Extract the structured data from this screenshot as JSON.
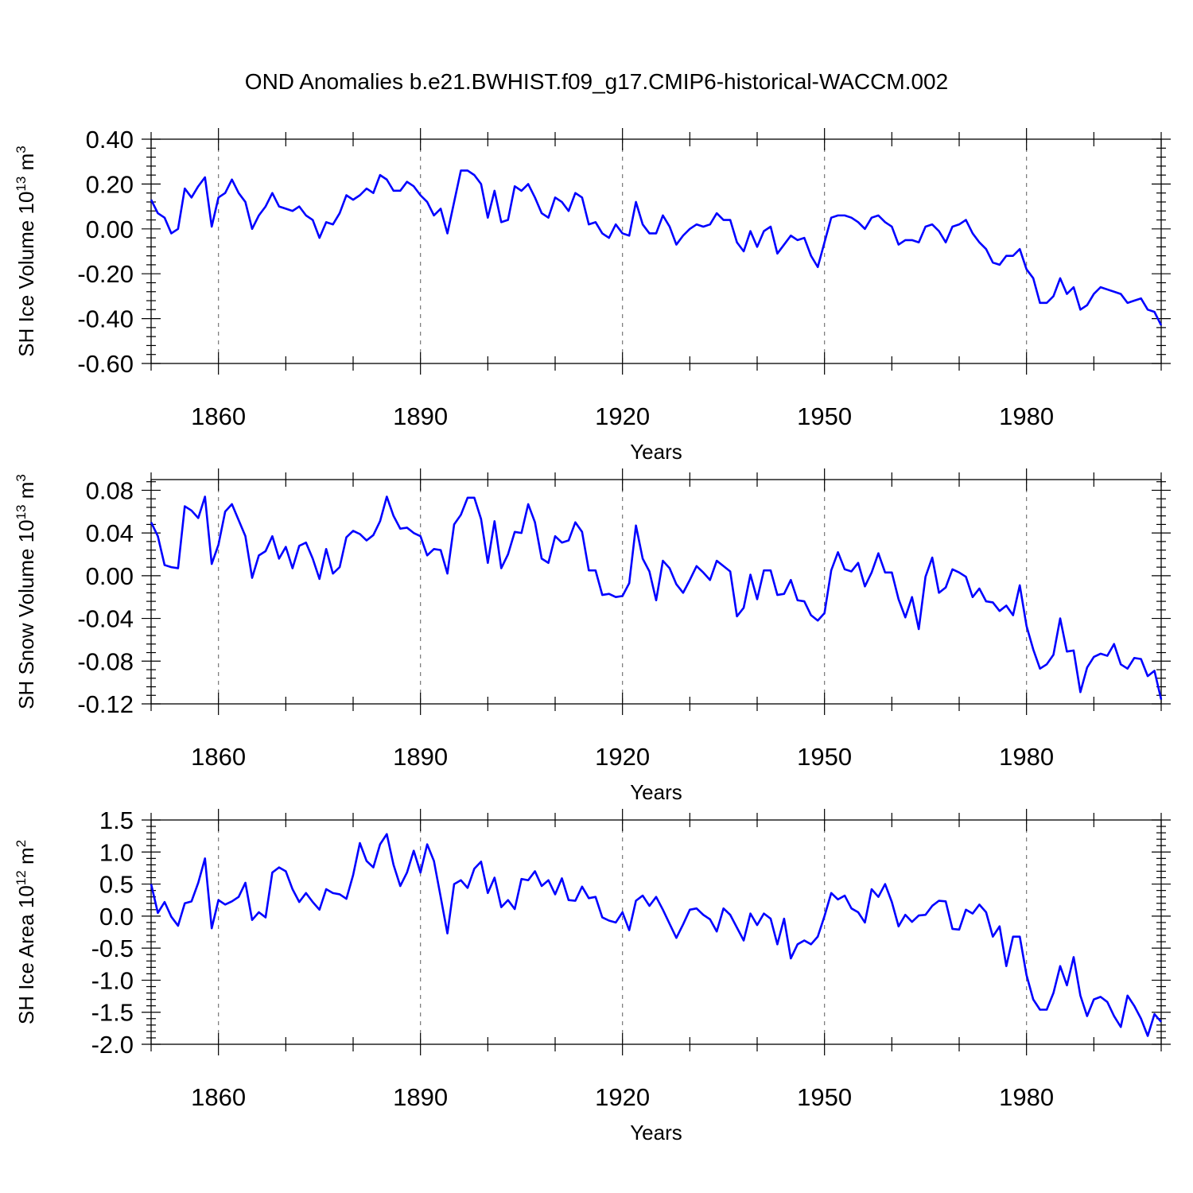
{
  "figure_title": "OND Anomalies b.e21.BWHIST.f09_g17.CMIP6-historical-WACCM.002",
  "colors": {
    "series": "#0000ff",
    "grid": "#777777",
    "axes": "#000000"
  },
  "chart_data": [
    {
      "type": "line",
      "xlabel": "Years",
      "ylabel": "SH Ice Volume 10",
      "ylabel_exp": "13",
      "ylabel_unit": " m",
      "ylabel_unit_exp": "3",
      "xlim": [
        1850,
        2000
      ],
      "ylim": [
        -0.6,
        0.4
      ],
      "yticks": [
        -0.6,
        -0.4,
        -0.2,
        0.0,
        0.2,
        0.4
      ],
      "ytick_labels": [
        "-0.60",
        "-0.40",
        "-0.20",
        "0.00",
        "0.20",
        "0.40"
      ],
      "xticks": [
        1860,
        1890,
        1920,
        1950,
        1980
      ],
      "xtick_labels": [
        "1860",
        "1890",
        "1920",
        "1950",
        "1980"
      ],
      "grid": "vertical dashed at x ticks",
      "x_start": 1850,
      "series": [
        {
          "color": "#0000ff",
          "values": [
            0.13,
            0.07,
            0.05,
            -0.02,
            0.0,
            0.18,
            0.14,
            0.19,
            0.23,
            0.01,
            0.14,
            0.16,
            0.22,
            0.16,
            0.12,
            0.0,
            0.06,
            0.1,
            0.16,
            0.1,
            0.09,
            0.08,
            0.1,
            0.06,
            0.04,
            -0.04,
            0.03,
            0.02,
            0.07,
            0.15,
            0.13,
            0.15,
            0.18,
            0.16,
            0.24,
            0.22,
            0.17,
            0.17,
            0.21,
            0.19,
            0.15,
            0.12,
            0.06,
            0.09,
            -0.02,
            0.12,
            0.26,
            0.26,
            0.24,
            0.2,
            0.05,
            0.17,
            0.03,
            0.04,
            0.19,
            0.17,
            0.2,
            0.14,
            0.07,
            0.05,
            0.14,
            0.12,
            0.08,
            0.16,
            0.14,
            0.02,
            0.03,
            -0.02,
            -0.04,
            0.02,
            -0.02,
            -0.03,
            0.12,
            0.02,
            -0.02,
            -0.02,
            0.06,
            0.01,
            -0.07,
            -0.03,
            0.0,
            0.02,
            0.01,
            0.02,
            0.07,
            0.04,
            0.04,
            -0.06,
            -0.1,
            -0.01,
            -0.08,
            -0.01,
            0.01,
            -0.11,
            -0.07,
            -0.03,
            -0.05,
            -0.04,
            -0.12,
            -0.17,
            -0.06,
            0.05,
            0.06,
            0.06,
            0.05,
            0.03,
            0.0,
            0.05,
            0.06,
            0.03,
            0.01,
            -0.07,
            -0.05,
            -0.05,
            -0.06,
            0.01,
            0.02,
            -0.01,
            -0.06,
            0.01,
            0.02,
            0.04,
            -0.02,
            -0.06,
            -0.09,
            -0.15,
            -0.16,
            -0.12,
            -0.12,
            -0.09,
            -0.18,
            -0.22,
            -0.33,
            -0.33,
            -0.3,
            -0.22,
            -0.29,
            -0.26,
            -0.36,
            -0.34,
            -0.29,
            -0.26,
            -0.27,
            -0.28,
            -0.29,
            -0.33,
            -0.32,
            -0.31,
            -0.36,
            -0.37,
            -0.43
          ]
        }
      ]
    },
    {
      "type": "line",
      "xlabel": "Years",
      "ylabel": "SH Snow Volume 10",
      "ylabel_exp": "13",
      "ylabel_unit": " m",
      "ylabel_unit_exp": "3",
      "xlim": [
        1850,
        2000
      ],
      "ylim": [
        -0.12,
        0.09
      ],
      "yticks": [
        -0.12,
        -0.08,
        -0.04,
        0.0,
        0.04,
        0.08
      ],
      "ytick_labels": [
        "-0.12",
        "-0.08",
        "-0.04",
        "0.00",
        "0.04",
        "0.08"
      ],
      "xticks": [
        1860,
        1890,
        1920,
        1950,
        1980
      ],
      "xtick_labels": [
        "1860",
        "1890",
        "1920",
        "1950",
        "1980"
      ],
      "grid": "vertical dashed at x ticks",
      "x_start": 1850,
      "series": [
        {
          "color": "#0000ff",
          "values": [
            0.05,
            0.037,
            0.01,
            0.008,
            0.007,
            0.065,
            0.061,
            0.054,
            0.074,
            0.011,
            0.029,
            0.06,
            0.067,
            0.052,
            0.037,
            -0.002,
            0.019,
            0.023,
            0.037,
            0.016,
            0.027,
            0.007,
            0.028,
            0.031,
            0.016,
            -0.003,
            0.025,
            0.002,
            0.008,
            0.036,
            0.042,
            0.039,
            0.033,
            0.038,
            0.051,
            0.074,
            0.056,
            0.044,
            0.045,
            0.04,
            0.037,
            0.019,
            0.025,
            0.024,
            0.002,
            0.048,
            0.057,
            0.073,
            0.073,
            0.053,
            0.012,
            0.051,
            0.007,
            0.02,
            0.041,
            0.04,
            0.067,
            0.05,
            0.016,
            0.012,
            0.037,
            0.031,
            0.033,
            0.05,
            0.041,
            0.005,
            0.005,
            -0.018,
            -0.017,
            -0.02,
            -0.019,
            -0.007,
            0.047,
            0.016,
            0.004,
            -0.023,
            0.014,
            0.007,
            -0.008,
            -0.016,
            -0.004,
            0.009,
            0.003,
            -0.004,
            0.014,
            0.009,
            0.004,
            -0.038,
            -0.03,
            0.001,
            -0.022,
            0.005,
            0.005,
            -0.018,
            -0.017,
            -0.004,
            -0.023,
            -0.024,
            -0.037,
            -0.042,
            -0.035,
            0.005,
            0.022,
            0.006,
            0.004,
            0.012,
            -0.01,
            0.003,
            0.021,
            0.003,
            0.003,
            -0.022,
            -0.039,
            -0.02,
            -0.05,
            -0.001,
            0.017,
            -0.016,
            -0.011,
            0.006,
            0.003,
            -0.001,
            -0.02,
            -0.012,
            -0.024,
            -0.025,
            -0.033,
            -0.028,
            -0.037,
            -0.009,
            -0.047,
            -0.069,
            -0.087,
            -0.083,
            -0.074,
            -0.04,
            -0.071,
            -0.07,
            -0.109,
            -0.086,
            -0.076,
            -0.073,
            -0.075,
            -0.064,
            -0.083,
            -0.087,
            -0.077,
            -0.078,
            -0.094,
            -0.089,
            -0.116
          ]
        }
      ]
    },
    {
      "type": "line",
      "xlabel": "Years",
      "ylabel": "SH Ice Area 10",
      "ylabel_exp": "12",
      "ylabel_unit": " m",
      "ylabel_unit_exp": "2",
      "xlim": [
        1850,
        2000
      ],
      "ylim": [
        -2.0,
        1.5
      ],
      "yticks": [
        -2.0,
        -1.5,
        -1.0,
        -0.5,
        0.0,
        0.5,
        1.0,
        1.5
      ],
      "ytick_labels": [
        "-2.0",
        "-1.5",
        "-1.0",
        "-0.5",
        "0.0",
        "0.5",
        "1.0",
        "1.5"
      ],
      "xticks": [
        1860,
        1890,
        1920,
        1950,
        1980
      ],
      "xtick_labels": [
        "1860",
        "1890",
        "1920",
        "1950",
        "1980"
      ],
      "grid": "vertical dashed at x ticks",
      "x_start": 1850,
      "series": [
        {
          "color": "#0000ff",
          "values": [
            0.5,
            0.05,
            0.22,
            -0.01,
            -0.15,
            0.2,
            0.23,
            0.52,
            0.9,
            -0.19,
            0.25,
            0.18,
            0.23,
            0.3,
            0.52,
            -0.06,
            0.06,
            -0.02,
            0.68,
            0.76,
            0.7,
            0.42,
            0.22,
            0.36,
            0.22,
            0.1,
            0.42,
            0.36,
            0.34,
            0.27,
            0.64,
            1.14,
            0.86,
            0.76,
            1.12,
            1.28,
            0.8,
            0.47,
            0.68,
            1.02,
            0.68,
            1.12,
            0.86,
            0.3,
            -0.27,
            0.5,
            0.56,
            0.44,
            0.74,
            0.85,
            0.36,
            0.6,
            0.14,
            0.25,
            0.11,
            0.58,
            0.56,
            0.7,
            0.47,
            0.56,
            0.34,
            0.59,
            0.25,
            0.24,
            0.46,
            0.28,
            0.3,
            -0.02,
            -0.07,
            -0.1,
            0.06,
            -0.22,
            0.24,
            0.32,
            0.16,
            0.3,
            0.1,
            -0.12,
            -0.34,
            -0.13,
            0.1,
            0.12,
            0.02,
            -0.05,
            -0.24,
            0.12,
            0.02,
            -0.18,
            -0.38,
            0.04,
            -0.14,
            0.04,
            -0.04,
            -0.44,
            -0.04,
            -0.66,
            -0.44,
            -0.38,
            -0.44,
            -0.32,
            0.0,
            0.36,
            0.26,
            0.32,
            0.12,
            0.06,
            -0.1,
            0.42,
            0.3,
            0.5,
            0.22,
            -0.16,
            0.02,
            -0.09,
            0.01,
            0.02,
            0.16,
            0.24,
            0.23,
            -0.2,
            -0.21,
            0.1,
            0.04,
            0.18,
            0.06,
            -0.32,
            -0.16,
            -0.78,
            -0.32,
            -0.32,
            -0.92,
            -1.3,
            -1.46,
            -1.46,
            -1.2,
            -0.78,
            -1.08,
            -0.64,
            -1.24,
            -1.56,
            -1.3,
            -1.26,
            -1.34,
            -1.56,
            -1.73,
            -1.24,
            -1.4,
            -1.6,
            -1.87,
            -1.53,
            -1.65
          ]
        }
      ]
    }
  ]
}
